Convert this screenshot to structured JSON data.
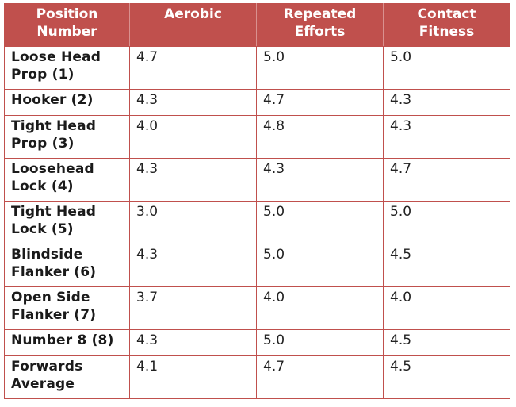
{
  "table": {
    "headers": [
      "Position Number",
      "Aerobic",
      "Repeated Efforts",
      "Contact Fitness"
    ],
    "header_lines": [
      [
        "Position",
        "Number"
      ],
      [
        "Aerobic",
        ""
      ],
      [
        "Repeated",
        "Efforts"
      ],
      [
        "Contact",
        "Fitness"
      ]
    ],
    "rows": [
      {
        "position_lines": [
          "Loose Head",
          "Prop (1)"
        ],
        "aerobic": "4.7",
        "repeated_efforts": "5.0",
        "contact_fitness": "5.0"
      },
      {
        "position_lines": [
          "Hooker (2)",
          ""
        ],
        "aerobic": "4.3",
        "repeated_efforts": "4.7",
        "contact_fitness": "4.3"
      },
      {
        "position_lines": [
          "Tight Head",
          "Prop (3)"
        ],
        "aerobic": "4.0",
        "repeated_efforts": "4.8",
        "contact_fitness": "4.3"
      },
      {
        "position_lines": [
          "Loosehead",
          "Lock (4)"
        ],
        "aerobic": "4.3",
        "repeated_efforts": "4.3",
        "contact_fitness": "4.7"
      },
      {
        "position_lines": [
          "Tight Head",
          "Lock (5)"
        ],
        "aerobic": "3.0",
        "repeated_efforts": "5.0",
        "contact_fitness": "5.0"
      },
      {
        "position_lines": [
          "Blindside",
          "Flanker (6)"
        ],
        "aerobic": "4.3",
        "repeated_efforts": "5.0",
        "contact_fitness": "4.5"
      },
      {
        "position_lines": [
          "Open Side",
          "Flanker (7)"
        ],
        "aerobic": "3.7",
        "repeated_efforts": "4.0",
        "contact_fitness": "4.0"
      },
      {
        "position_lines": [
          "Number 8 (8)",
          ""
        ],
        "aerobic": "4.3",
        "repeated_efforts": "5.0",
        "contact_fitness": "4.5"
      },
      {
        "position_lines": [
          "Forwards",
          "Average"
        ],
        "aerobic": "4.1",
        "repeated_efforts": "4.7",
        "contact_fitness": "4.5"
      }
    ],
    "colors": {
      "header_bg": "#c0504d",
      "header_text": "#ffffff",
      "border": "#c0504d"
    }
  }
}
